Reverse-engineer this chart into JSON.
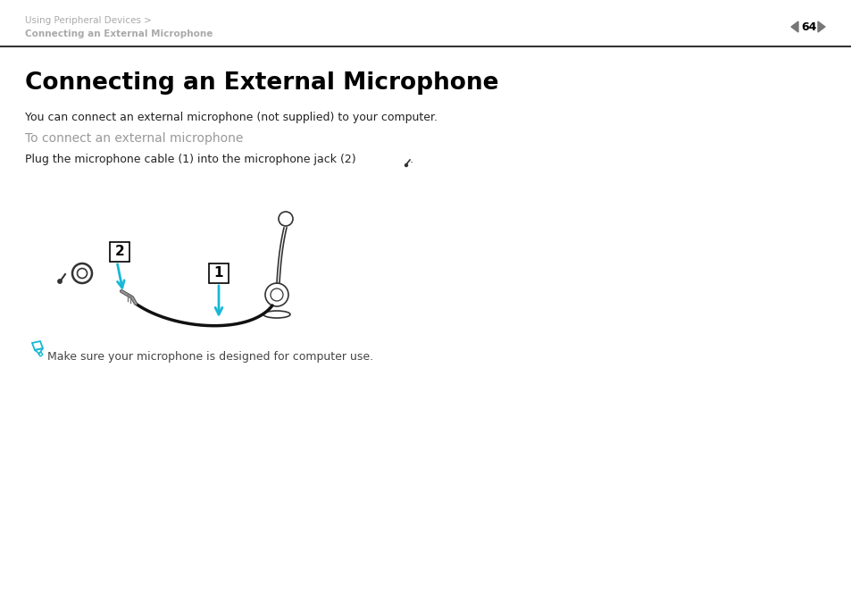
{
  "bg_color": "#ffffff",
  "header_breadcrumb1": "Using Peripheral Devices >",
  "header_breadcrumb2": "Connecting an External Microphone",
  "page_number": "64",
  "title": "Connecting an External Microphone",
  "body_text": "You can connect an external microphone (not supplied) to your computer.",
  "subheading": "To connect an external microphone",
  "instruction": "Plug the microphone cable (1) into the microphone jack (2)",
  "note_text": "Make sure your microphone is designed for computer use.",
  "header_text_color": "#aaaaaa",
  "title_color": "#000000",
  "body_color": "#222222",
  "subheading_color": "#999999",
  "note_color": "#444444",
  "arrow_color": "#17b8d4",
  "diagram_color": "#333333",
  "line_sep_color": "#333333"
}
